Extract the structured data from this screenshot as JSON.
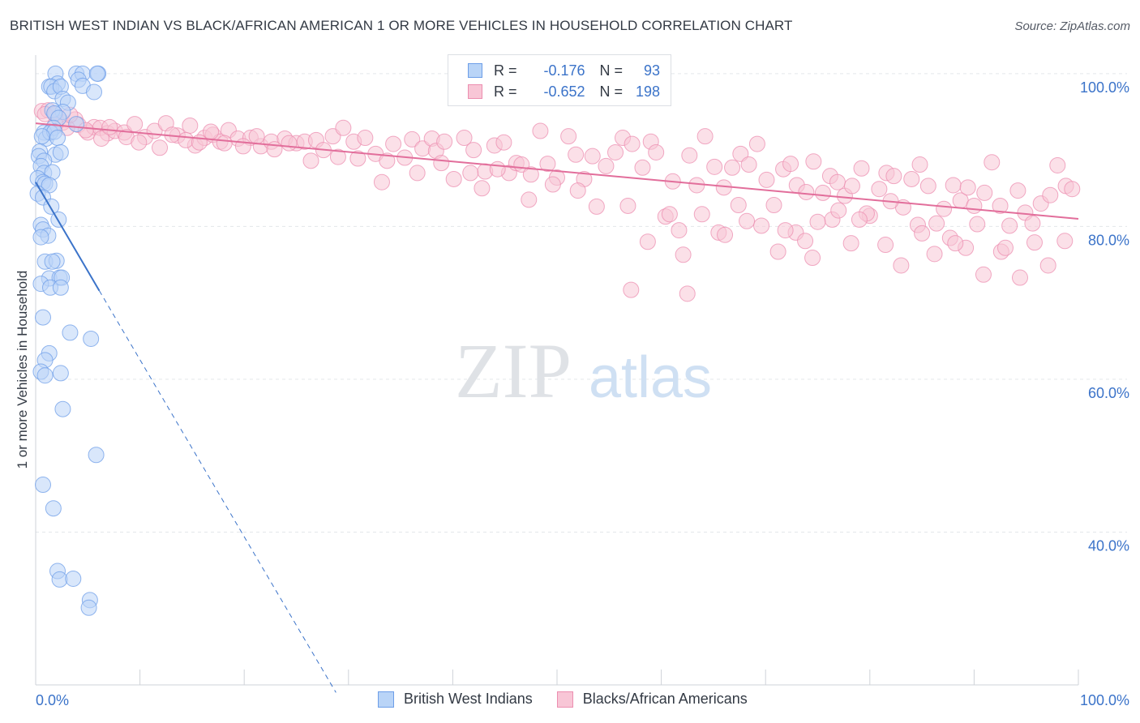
{
  "header": {
    "title": "BRITISH WEST INDIAN VS BLACK/AFRICAN AMERICAN 1 OR MORE VEHICLES IN HOUSEHOLD CORRELATION CHART",
    "source": "Source: ZipAtlas.com"
  },
  "watermark": {
    "zip": "ZIP",
    "atlas": "atlas"
  },
  "legend": {
    "r_label": "R =",
    "n_label": "N =",
    "rows": [
      {
        "r": "-0.176",
        "n": "93",
        "color": "#6d9ee8"
      },
      {
        "r": "-0.652",
        "n": "198",
        "color": "#ec8eb0"
      }
    ]
  },
  "chart_data": {
    "type": "scatter",
    "title": "BRITISH WEST INDIAN VS BLACK/AFRICAN AMERICAN 1 OR MORE VEHICLES IN HOUSEHOLD CORRELATION CHART",
    "xlabel": "",
    "ylabel": "1 or more Vehicles in Household",
    "xlim": [
      0,
      100
    ],
    "ylim": [
      20,
      102
    ],
    "x_ticks": [
      "0.0%",
      "100.0%"
    ],
    "y_ticks": [
      {
        "value": 100,
        "label": "100.0%"
      },
      {
        "value": 80,
        "label": "80.0%"
      },
      {
        "value": 60,
        "label": "60.0%"
      },
      {
        "value": 40,
        "label": "40.0%"
      }
    ],
    "grid": true,
    "legend_position": "bottom",
    "series": [
      {
        "name": "British West Indians",
        "color": "#6d9ee8",
        "fill": "#b9d4f7",
        "trend": {
          "x0": 0,
          "y0": 85.8,
          "x1": 6.1,
          "y1": 71.6,
          "dash_to_x": 28.8,
          "dash_to_y": 19.0
        },
        "points": [
          [
            1.9,
            100.0
          ],
          [
            3.9,
            100.0
          ],
          [
            4.5,
            100.0
          ],
          [
            6.0,
            100.0
          ],
          [
            5.9,
            100.0
          ],
          [
            2.1,
            98.7
          ],
          [
            4.1,
            99.2
          ],
          [
            4.5,
            98.4
          ],
          [
            1.3,
            98.3
          ],
          [
            1.5,
            98.3
          ],
          [
            1.8,
            97.7
          ],
          [
            2.4,
            98.3
          ],
          [
            5.6,
            97.6
          ],
          [
            2.6,
            96.7
          ],
          [
            3.1,
            96.2
          ],
          [
            2.6,
            95.0
          ],
          [
            1.6,
            95.2
          ],
          [
            3.9,
            93.4
          ],
          [
            1.8,
            94.8
          ],
          [
            2.2,
            94.2
          ],
          [
            1.7,
            92.9
          ],
          [
            0.8,
            92.3
          ],
          [
            1.0,
            91.5
          ],
          [
            1.4,
            92.3
          ],
          [
            1.8,
            92.4
          ],
          [
            2.1,
            91.6
          ],
          [
            0.6,
            91.8
          ],
          [
            0.4,
            89.8
          ],
          [
            1.9,
            89.4
          ],
          [
            2.4,
            89.7
          ],
          [
            0.3,
            89.2
          ],
          [
            0.8,
            88.6
          ],
          [
            0.5,
            87.9
          ],
          [
            0.8,
            87.0
          ],
          [
            1.6,
            87.1
          ],
          [
            0.2,
            86.3
          ],
          [
            0.7,
            85.8
          ],
          [
            0.9,
            85.6
          ],
          [
            1.3,
            85.4
          ],
          [
            0.2,
            84.3
          ],
          [
            0.7,
            83.8
          ],
          [
            1.5,
            82.6
          ],
          [
            2.2,
            80.9
          ],
          [
            0.5,
            80.2
          ],
          [
            0.7,
            79.6
          ],
          [
            1.2,
            78.8
          ],
          [
            0.5,
            78.6
          ],
          [
            0.9,
            75.4
          ],
          [
            2.0,
            75.5
          ],
          [
            1.6,
            75.4
          ],
          [
            1.3,
            73.2
          ],
          [
            2.3,
            73.3
          ],
          [
            2.5,
            73.3
          ],
          [
            0.5,
            72.5
          ],
          [
            1.4,
            72.0
          ],
          [
            2.4,
            72.0
          ],
          [
            0.7,
            68.1
          ],
          [
            3.3,
            66.1
          ],
          [
            5.3,
            65.3
          ],
          [
            1.3,
            63.4
          ],
          [
            0.9,
            62.5
          ],
          [
            0.5,
            61.0
          ],
          [
            2.4,
            60.8
          ],
          [
            0.9,
            60.5
          ],
          [
            2.6,
            56.1
          ],
          [
            5.8,
            50.1
          ],
          [
            0.7,
            46.2
          ],
          [
            1.7,
            43.1
          ],
          [
            2.1,
            34.9
          ],
          [
            2.3,
            33.8
          ],
          [
            3.6,
            33.9
          ],
          [
            5.2,
            31.1
          ],
          [
            5.1,
            30.1
          ]
        ]
      },
      {
        "name": "Blacks/African Americans",
        "color": "#ec8eb0",
        "fill": "#f8c6d6",
        "trend": {
          "x0": 0,
          "y0": 93.5,
          "x1": 100,
          "y1": 81.0
        },
        "points": [
          [
            0.6,
            95.1
          ],
          [
            1.2,
            95.2
          ],
          [
            0.9,
            94.7
          ],
          [
            1.9,
            94.7
          ],
          [
            2.6,
            93.6
          ],
          [
            3.8,
            94.0
          ],
          [
            4.1,
            93.3
          ],
          [
            3.0,
            92.9
          ],
          [
            5.0,
            92.3
          ],
          [
            5.6,
            93.0
          ],
          [
            6.2,
            92.9
          ],
          [
            6.9,
            92.2
          ],
          [
            7.6,
            92.5
          ],
          [
            8.5,
            92.3
          ],
          [
            9.5,
            93.4
          ],
          [
            10.5,
            91.7
          ],
          [
            11.4,
            92.5
          ],
          [
            12.5,
            93.5
          ],
          [
            13.6,
            91.9
          ],
          [
            14.8,
            93.2
          ],
          [
            15.3,
            90.6
          ],
          [
            16.2,
            91.6
          ],
          [
            17.0,
            92.0
          ],
          [
            17.7,
            91.1
          ],
          [
            18.5,
            92.6
          ],
          [
            19.4,
            91.5
          ],
          [
            20.6,
            91.6
          ],
          [
            21.6,
            90.5
          ],
          [
            22.6,
            91.1
          ],
          [
            23.9,
            91.5
          ],
          [
            25.0,
            90.9
          ],
          [
            25.8,
            91.1
          ],
          [
            26.9,
            91.3
          ],
          [
            28.5,
            91.8
          ],
          [
            29.5,
            92.9
          ],
          [
            30.5,
            91.1
          ],
          [
            31.6,
            91.6
          ],
          [
            32.6,
            89.5
          ],
          [
            33.2,
            85.8
          ],
          [
            34.3,
            90.8
          ],
          [
            35.4,
            89.0
          ],
          [
            36.1,
            91.4
          ],
          [
            37.1,
            90.2
          ],
          [
            38.0,
            91.5
          ],
          [
            38.4,
            89.9
          ],
          [
            39.2,
            91.1
          ],
          [
            40.1,
            86.2
          ],
          [
            41.1,
            91.6
          ],
          [
            42.0,
            90.0
          ],
          [
            43.1,
            87.2
          ],
          [
            44.0,
            90.6
          ],
          [
            44.9,
            91.0
          ],
          [
            45.4,
            87.0
          ],
          [
            46.1,
            88.3
          ],
          [
            46.6,
            88.1
          ],
          [
            47.5,
            86.8
          ],
          [
            48.4,
            92.5
          ],
          [
            49.1,
            88.2
          ],
          [
            50.0,
            86.4
          ],
          [
            51.1,
            91.8
          ],
          [
            51.8,
            89.4
          ],
          [
            52.6,
            86.2
          ],
          [
            53.4,
            89.2
          ],
          [
            54.7,
            87.9
          ],
          [
            55.6,
            89.7
          ],
          [
            56.3,
            91.6
          ],
          [
            57.2,
            90.8
          ],
          [
            58.2,
            87.7
          ],
          [
            59.0,
            91.1
          ],
          [
            59.5,
            89.7
          ],
          [
            60.4,
            81.3
          ],
          [
            61.1,
            85.9
          ],
          [
            61.7,
            79.5
          ],
          [
            62.7,
            89.3
          ],
          [
            63.4,
            85.4
          ],
          [
            64.2,
            91.8
          ],
          [
            65.1,
            87.8
          ],
          [
            66.0,
            85.1
          ],
          [
            66.8,
            87.7
          ],
          [
            67.6,
            89.5
          ],
          [
            68.4,
            88.1
          ],
          [
            69.2,
            90.8
          ],
          [
            70.1,
            86.1
          ],
          [
            70.8,
            82.8
          ],
          [
            71.7,
            87.5
          ],
          [
            72.4,
            88.2
          ],
          [
            73.0,
            85.4
          ],
          [
            73.9,
            84.5
          ],
          [
            74.6,
            88.5
          ],
          [
            75.5,
            84.4
          ],
          [
            76.2,
            86.6
          ],
          [
            76.9,
            85.8
          ],
          [
            77.6,
            84.0
          ],
          [
            78.3,
            85.3
          ],
          [
            79.2,
            87.6
          ],
          [
            80.0,
            81.4
          ],
          [
            80.9,
            84.9
          ],
          [
            81.6,
            87.0
          ],
          [
            82.3,
            86.6
          ],
          [
            83.2,
            82.5
          ],
          [
            84.0,
            86.2
          ],
          [
            84.8,
            88.1
          ],
          [
            85.6,
            85.3
          ],
          [
            86.4,
            80.4
          ],
          [
            87.1,
            82.3
          ],
          [
            88.0,
            85.4
          ],
          [
            88.7,
            83.4
          ],
          [
            89.4,
            85.1
          ],
          [
            90.3,
            80.3
          ],
          [
            91.0,
            84.4
          ],
          [
            91.7,
            88.4
          ],
          [
            92.5,
            82.7
          ],
          [
            93.4,
            80.1
          ],
          [
            94.2,
            84.7
          ],
          [
            94.9,
            81.8
          ],
          [
            95.6,
            80.4
          ],
          [
            96.4,
            83.0
          ],
          [
            97.3,
            84.1
          ],
          [
            98.0,
            88.0
          ],
          [
            98.8,
            85.3
          ],
          [
            99.4,
            84.9
          ],
          [
            1.9,
            93.4
          ],
          [
            3.3,
            94.6
          ],
          [
            4.8,
            92.6
          ],
          [
            6.3,
            91.5
          ],
          [
            7.1,
            93.0
          ],
          [
            8.7,
            91.7
          ],
          [
            9.9,
            91.0
          ],
          [
            11.9,
            90.3
          ],
          [
            13.1,
            92.0
          ],
          [
            14.4,
            91.3
          ],
          [
            15.7,
            91.0
          ],
          [
            16.8,
            92.4
          ],
          [
            18.1,
            90.9
          ],
          [
            19.9,
            90.5
          ],
          [
            21.2,
            91.8
          ],
          [
            22.9,
            90.1
          ],
          [
            24.3,
            90.9
          ],
          [
            26.4,
            88.6
          ],
          [
            27.6,
            90.0
          ],
          [
            29.0,
            89.1
          ],
          [
            30.9,
            88.9
          ],
          [
            33.7,
            88.6
          ],
          [
            36.6,
            87.0
          ],
          [
            38.9,
            88.3
          ],
          [
            41.7,
            87.0
          ],
          [
            42.8,
            85.0
          ],
          [
            44.3,
            87.5
          ],
          [
            47.3,
            83.5
          ],
          [
            49.6,
            85.5
          ],
          [
            52.0,
            84.7
          ],
          [
            53.8,
            82.6
          ],
          [
            56.8,
            82.7
          ],
          [
            58.7,
            78.0
          ],
          [
            60.8,
            81.6
          ],
          [
            62.1,
            76.3
          ],
          [
            63.9,
            81.6
          ],
          [
            65.5,
            79.2
          ],
          [
            67.4,
            82.8
          ],
          [
            69.6,
            80.1
          ],
          [
            71.2,
            76.7
          ],
          [
            72.9,
            79.2
          ],
          [
            74.5,
            75.9
          ],
          [
            76.4,
            80.9
          ],
          [
            78.2,
            77.8
          ],
          [
            79.7,
            81.7
          ],
          [
            81.5,
            77.6
          ],
          [
            83.0,
            74.9
          ],
          [
            84.6,
            80.2
          ],
          [
            86.2,
            76.4
          ],
          [
            87.7,
            78.5
          ],
          [
            89.2,
            77.2
          ],
          [
            90.9,
            73.7
          ],
          [
            92.6,
            76.7
          ],
          [
            94.4,
            73.3
          ],
          [
            95.8,
            77.9
          ],
          [
            97.1,
            74.9
          ],
          [
            98.7,
            78.1
          ],
          [
            57.1,
            71.7
          ],
          [
            62.5,
            71.2
          ],
          [
            66.1,
            78.9
          ],
          [
            68.2,
            80.7
          ],
          [
            71.9,
            79.5
          ],
          [
            73.8,
            78.1
          ],
          [
            75.0,
            80.6
          ],
          [
            77.0,
            82.1
          ],
          [
            79.0,
            80.9
          ],
          [
            82.0,
            83.3
          ],
          [
            85.0,
            79.1
          ],
          [
            88.2,
            77.8
          ],
          [
            90.0,
            82.7
          ],
          [
            93.0,
            77.2
          ]
        ]
      }
    ]
  }
}
